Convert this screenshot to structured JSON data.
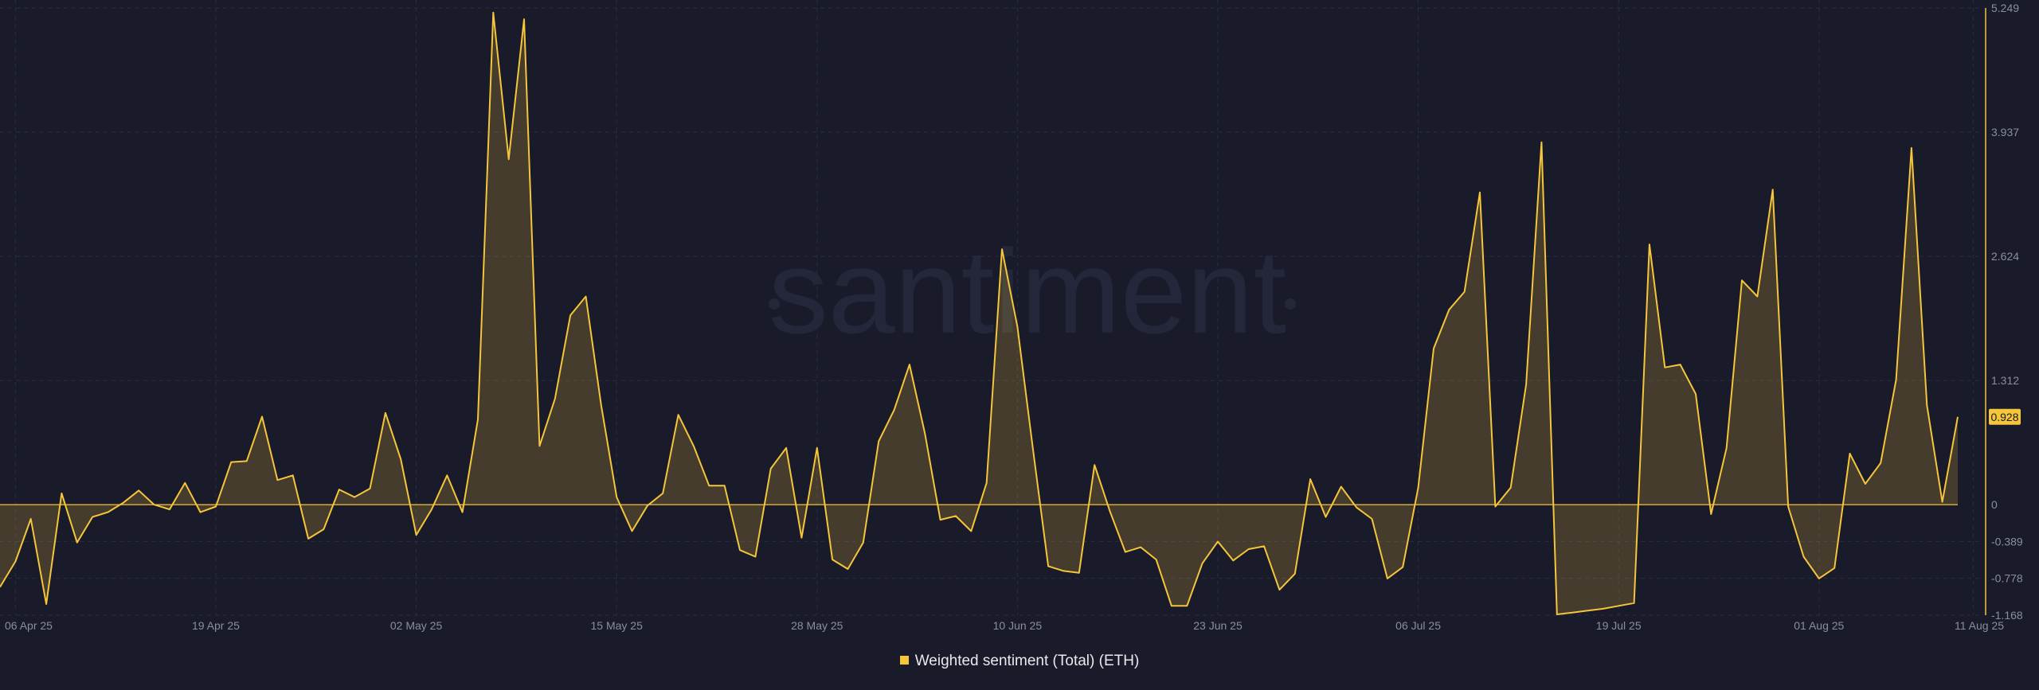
{
  "chart_data": {
    "type": "area",
    "title": "",
    "xlabel": "",
    "ylabel": "",
    "watermark": "santiment",
    "colors": {
      "background": "#191b2b",
      "line": "#f5c53a",
      "fill": "#f5c53a",
      "grid": "#2a2d40",
      "axis_text": "#8b8e9f",
      "zero_line": "#f5c53a"
    },
    "grid": true,
    "legend_position": "bottom-center",
    "ylim": [
      -1.168,
      5.249
    ],
    "y_ticks": [
      5.249,
      3.937,
      2.624,
      1.312,
      0,
      -0.389,
      -0.778,
      -1.168
    ],
    "y_tick_labels": [
      "5.249",
      "3.937",
      "2.624",
      "1.312",
      "0",
      "-0.389",
      "-0.778",
      "-1.168"
    ],
    "x_tick_labels": [
      "06 Apr 25",
      "19 Apr 25",
      "02 May 25",
      "15 May 25",
      "28 May 25",
      "10 Jun 25",
      "23 Jun 25",
      "06 Jul 25",
      "19 Jul 25",
      "01 Aug 25",
      "11 Aug 25"
    ],
    "x_tick_index": [
      1,
      14,
      27,
      40,
      53,
      66,
      79,
      92,
      105,
      118,
      128
    ],
    "last_value": "0.928",
    "series": [
      {
        "name": "Weighted sentiment (Total) (ETH)",
        "start_date": "2025-04-05",
        "values": [
          -0.87,
          -0.6,
          -0.15,
          -1.05,
          0.12,
          -0.4,
          -0.13,
          -0.08,
          0.02,
          0.15,
          0.0,
          -0.05,
          0.23,
          -0.08,
          -0.02,
          0.45,
          0.46,
          0.93,
          0.26,
          0.31,
          -0.36,
          -0.26,
          0.16,
          0.08,
          0.17,
          0.97,
          0.48,
          -0.32,
          -0.05,
          0.31,
          -0.08,
          0.9,
          5.2,
          3.65,
          5.13,
          0.62,
          1.12,
          2.0,
          2.2,
          1.05,
          0.08,
          -0.28,
          -0.01,
          0.12,
          0.95,
          0.62,
          0.2,
          0.2,
          -0.48,
          -0.55,
          0.38,
          0.6,
          -0.35,
          0.6,
          -0.58,
          -0.68,
          -0.4,
          0.67,
          1.0,
          1.48,
          0.75,
          -0.16,
          -0.12,
          -0.28,
          0.23,
          2.7,
          1.88,
          0.6,
          -0.65,
          -0.7,
          -0.72,
          0.42,
          -0.07,
          -0.5,
          -0.45,
          -0.58,
          -1.07,
          -1.07,
          -0.62,
          -0.39,
          -0.59,
          -0.47,
          -0.44,
          -0.9,
          -0.73,
          0.27,
          -0.13,
          0.19,
          -0.03,
          -0.15,
          -0.78,
          -0.66,
          0.18,
          1.65,
          2.06,
          2.25,
          3.3,
          -0.02,
          0.18,
          1.27,
          3.83,
          -1.16,
          -1.14,
          -1.12,
          -1.1,
          -1.07,
          -1.04,
          2.75,
          1.45,
          1.48,
          1.17,
          -0.1,
          0.6,
          2.37,
          2.2,
          3.33,
          -0.02,
          -0.55,
          -0.78,
          -0.67,
          0.54,
          0.22,
          0.44,
          1.32,
          3.77,
          1.05,
          0.03,
          0.928
        ]
      }
    ]
  }
}
